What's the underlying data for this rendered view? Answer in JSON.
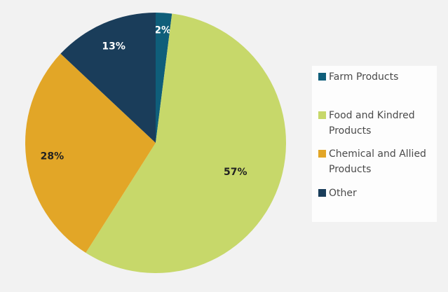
{
  "chart_data": {
    "type": "pie",
    "categories": [
      "Farm Products",
      "Food and Kindred Products",
      "Chemical and Allied Products",
      "Other"
    ],
    "values": [
      2,
      57,
      28,
      13
    ],
    "labels": [
      "2%",
      "57%",
      "28%",
      "13%"
    ],
    "colors": [
      "#0f5e7a",
      "#c7d86a",
      "#e2a627",
      "#1a3d5a"
    ],
    "label_colors": [
      "#ffffff",
      "#222222",
      "#222222",
      "#ffffff"
    ],
    "start": "top",
    "direction": "clockwise",
    "legend_position": "right"
  }
}
